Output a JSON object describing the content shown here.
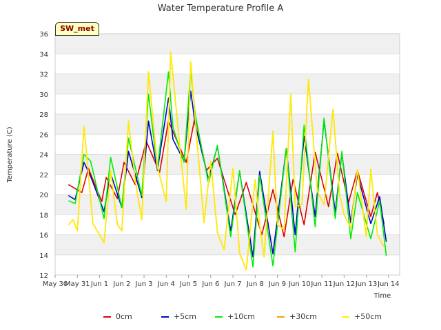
{
  "chart_data": {
    "type": "line",
    "title": "Water Temperature Profile A",
    "xlabel": "Time",
    "ylabel": "Temperature (C)",
    "ylim": [
      12,
      36
    ],
    "yticks": [
      12,
      14,
      16,
      18,
      20,
      22,
      24,
      26,
      28,
      30,
      32,
      34,
      36
    ],
    "xlim": [
      0,
      15.5
    ],
    "xtick_labels": [
      "May 30",
      "May 31",
      "Jun 1",
      "Jun 2",
      "Jun 3",
      "Jun 4",
      "Jun 5",
      "Jun 6",
      "Jun 7",
      "Jun 8",
      "Jun 9",
      "Jun 10",
      "Jun 11",
      "Jun 12",
      "Jun 13",
      "Jun 14"
    ],
    "grid": true,
    "legend_position": "bottom",
    "annotation": "SW_met",
    "series": [
      {
        "name": "0cm",
        "color": "#dd0000",
        "x": [
          0.6,
          1.2,
          1.5,
          2.1,
          2.3,
          2.8,
          3.1,
          3.6,
          4.1,
          4.7,
          5.1,
          5.9,
          6.3,
          6.8,
          7.3,
          8.1,
          8.6,
          9.3,
          9.8,
          10.3,
          10.7,
          11.2,
          11.7,
          12.3,
          12.7,
          13.2,
          13.6,
          14.2,
          14.5,
          14.8
        ],
        "y": [
          21.0,
          20.2,
          22.6,
          19.3,
          21.7,
          19.6,
          23.2,
          21.0,
          25.3,
          22.2,
          27.3,
          23.2,
          27.8,
          22.4,
          23.6,
          18.0,
          21.2,
          16.0,
          20.5,
          15.8,
          21.5,
          17.0,
          24.2,
          18.8,
          24.1,
          19.2,
          22.4,
          17.8,
          20.2,
          17.1
        ]
      },
      {
        "name": "+5cm",
        "color": "#0000cc",
        "x": [
          0.6,
          0.9,
          1.3,
          1.6,
          2.2,
          2.5,
          3.0,
          3.3,
          3.9,
          4.2,
          4.6,
          5.1,
          5.3,
          5.8,
          6.1,
          6.3,
          6.9,
          7.3,
          7.9,
          8.3,
          8.9,
          9.2,
          9.8,
          10.4,
          10.8,
          11.2,
          11.7,
          12.1,
          12.6,
          12.9,
          13.3,
          13.6,
          14.2,
          14.6,
          14.9
        ],
        "y": [
          19.9,
          19.5,
          23.2,
          21.8,
          18.3,
          22.1,
          18.7,
          24.3,
          19.7,
          27.3,
          22.4,
          29.6,
          25.5,
          23.3,
          30.3,
          27.0,
          21.5,
          24.8,
          16.4,
          22.3,
          13.8,
          22.3,
          14.1,
          24.6,
          16.0,
          25.8,
          17.8,
          27.4,
          18.2,
          24.1,
          17.2,
          22.0,
          17.1,
          19.8,
          15.3
        ]
      },
      {
        "name": "+10cm",
        "color": "#00ee00",
        "x": [
          0.6,
          0.9,
          1.3,
          1.6,
          2.2,
          2.5,
          3.0,
          3.3,
          3.9,
          4.2,
          4.6,
          5.1,
          5.3,
          5.8,
          6.1,
          6.3,
          6.9,
          7.3,
          7.9,
          8.3,
          8.9,
          9.2,
          9.8,
          10.4,
          10.8,
          11.2,
          11.7,
          12.1,
          12.6,
          12.9,
          13.3,
          13.6,
          14.2,
          14.6,
          14.9
        ],
        "y": [
          19.4,
          19.1,
          24.0,
          23.3,
          17.6,
          23.7,
          18.7,
          25.6,
          19.9,
          30.0,
          22.5,
          32.2,
          26.7,
          23.2,
          32.4,
          28.0,
          21.1,
          24.9,
          15.8,
          22.4,
          12.8,
          21.9,
          12.9,
          24.6,
          14.3,
          26.9,
          16.8,
          27.6,
          17.6,
          24.3,
          15.6,
          20.2,
          15.6,
          19.4,
          13.9
        ]
      },
      {
        "name": "+30cm",
        "color": "#ff9900",
        "x": [
          0.6,
          0.8,
          1.0,
          1.3,
          1.5,
          1.7,
          2.0,
          2.2,
          2.5,
          2.8,
          3.0,
          3.3,
          3.6,
          3.9,
          4.2,
          4.6,
          5.0,
          5.2,
          5.6,
          5.9,
          6.1,
          6.3,
          6.7,
          7.0,
          7.3,
          7.6,
          8.0,
          8.3,
          8.6,
          9.0,
          9.2,
          9.4,
          9.8,
          10.0,
          10.3,
          10.6,
          10.8,
          11.1,
          11.4,
          11.8,
          12.1,
          12.5,
          12.8,
          13.0,
          13.3,
          13.6,
          14.0,
          14.2,
          14.5,
          14.8
        ],
        "y": [
          17.0,
          17.5,
          16.4,
          26.8,
          22.0,
          17.1,
          16.0,
          15.2,
          22.4,
          17.0,
          16.4,
          27.3,
          21.5,
          17.5,
          32.2,
          22.8,
          19.3,
          34.2,
          25.0,
          18.5,
          33.2,
          27.5,
          17.2,
          23.3,
          16.2,
          14.5,
          22.6,
          14.2,
          12.5,
          21.5,
          17.0,
          13.8,
          26.3,
          17.0,
          16.5,
          30.0,
          18.8,
          19.0,
          31.5,
          20.3,
          19.0,
          28.5,
          20.0,
          18.0,
          16.7,
          22.5,
          15.8,
          22.5,
          16.0,
          14.8
        ]
      },
      {
        "name": "+50cm",
        "color": "#ffee00",
        "x": [
          0.6,
          0.8,
          1.0,
          1.3,
          1.5,
          1.7,
          2.0,
          2.2,
          2.5,
          2.8,
          3.0,
          3.3,
          3.6,
          3.9,
          4.2,
          4.6,
          5.0,
          5.2,
          5.6,
          5.9,
          6.1,
          6.3,
          6.7,
          7.0,
          7.3,
          7.6,
          8.0,
          8.3,
          8.6,
          9.0,
          9.2,
          9.4,
          9.8,
          10.0,
          10.3,
          10.6,
          10.8,
          11.1,
          11.4,
          11.8,
          12.1,
          12.5,
          12.8,
          13.0,
          13.3,
          13.6,
          14.0,
          14.2,
          14.5,
          14.8
        ],
        "y": [
          17.0,
          17.5,
          16.4,
          26.8,
          22.0,
          17.1,
          16.0,
          15.2,
          22.4,
          17.0,
          16.4,
          27.3,
          21.5,
          17.5,
          32.2,
          22.8,
          19.3,
          34.2,
          25.0,
          18.5,
          33.2,
          27.5,
          17.2,
          23.3,
          16.2,
          14.5,
          22.6,
          14.2,
          12.5,
          21.5,
          17.0,
          13.8,
          26.3,
          17.0,
          16.5,
          30.0,
          18.8,
          19.0,
          31.5,
          20.3,
          19.0,
          28.5,
          20.0,
          18.0,
          16.7,
          22.5,
          15.8,
          22.5,
          16.0,
          14.8
        ]
      }
    ]
  }
}
